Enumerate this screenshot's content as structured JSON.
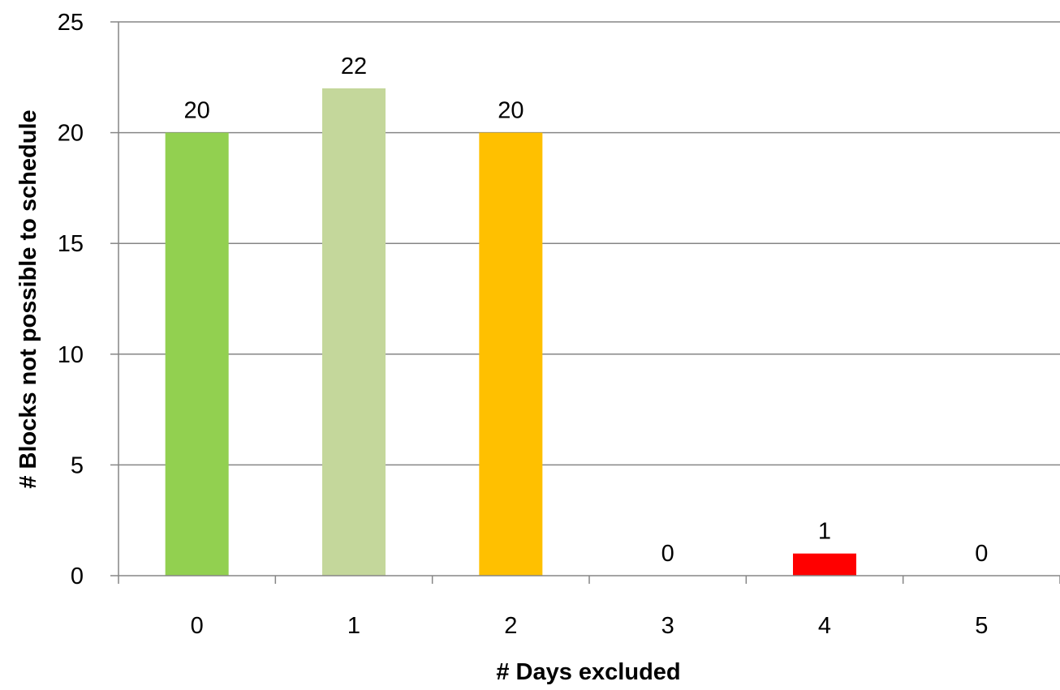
{
  "chart_data": {
    "type": "bar",
    "title": "",
    "xlabel": "# Days excluded",
    "ylabel": "# Blocks not possible to schedule",
    "categories": [
      "0",
      "1",
      "2",
      "3",
      "4",
      "5"
    ],
    "values": [
      20,
      22,
      20,
      0,
      1,
      0
    ],
    "data_labels": [
      "20",
      "22",
      "20",
      "0",
      "1",
      "0"
    ],
    "bar_colors": [
      "#92d050",
      "#c4d79b",
      "#ffc000",
      "#ffffff",
      "#ff0000",
      "#ffffff"
    ],
    "ylim": [
      0,
      25
    ],
    "yticks": [
      0,
      5,
      10,
      15,
      20,
      25
    ],
    "ytick_labels": [
      "0",
      "5",
      "10",
      "15",
      "20",
      "25"
    ],
    "grid": true,
    "gridline_color": "#868686",
    "axis_color": "#868686",
    "legend": "none"
  }
}
